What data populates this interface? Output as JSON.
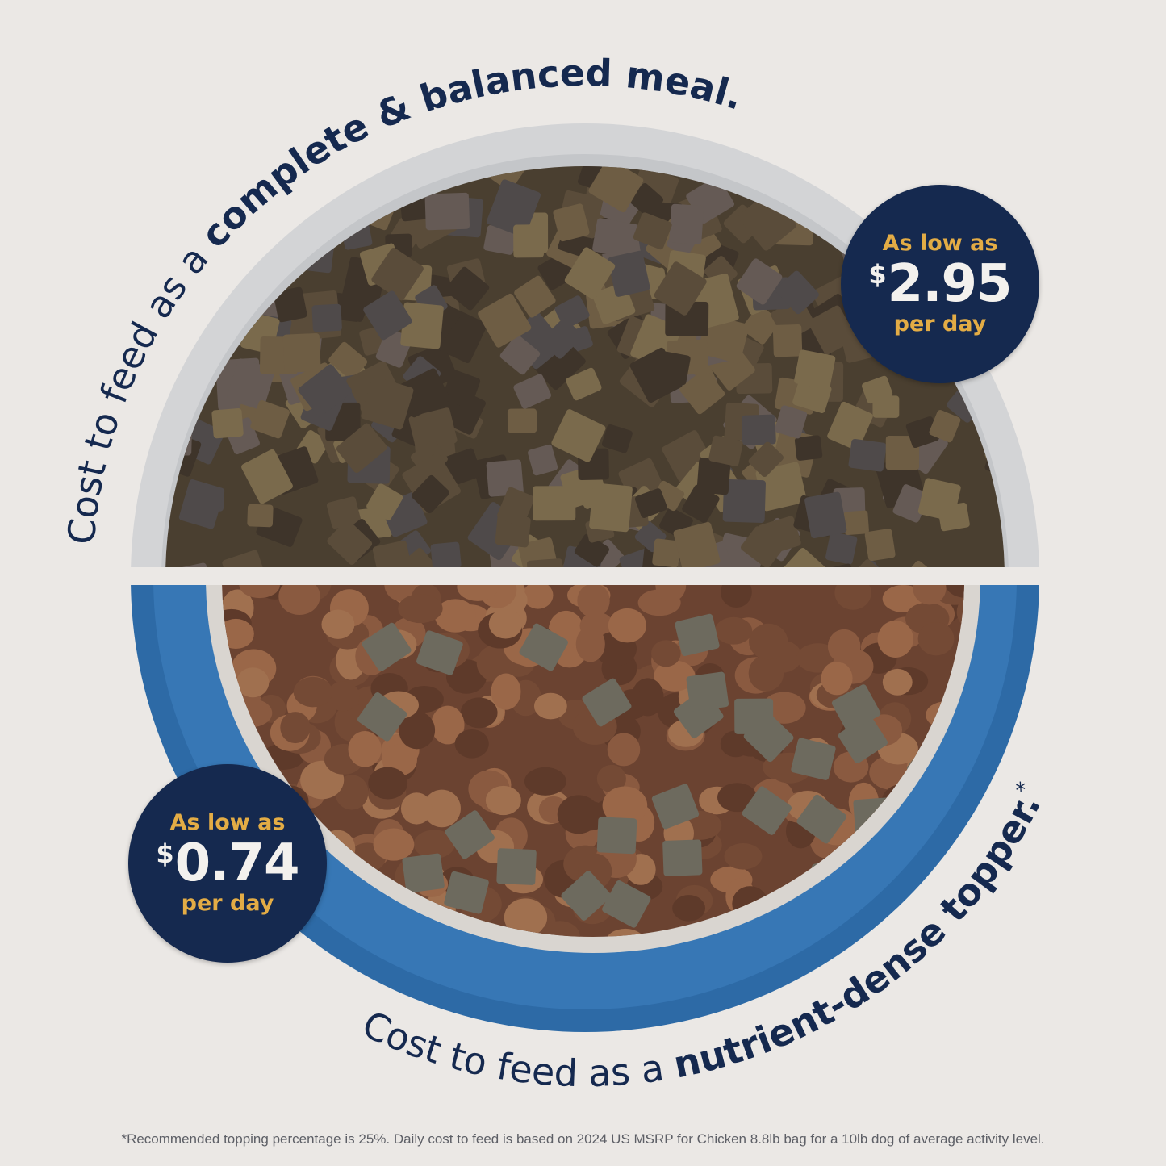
{
  "headline_top": {
    "regular": "Cost to feed as a ",
    "bold": "complete & balanced meal."
  },
  "headline_bottom": {
    "regular": "Cost to feed as a ",
    "bold": "nutrient-dense topper.",
    "mark": "*"
  },
  "badge_meal": {
    "lead": "As low as",
    "currency": "$",
    "amount": "2.95",
    "tail": "per day"
  },
  "badge_topper": {
    "lead": "As low as",
    "currency": "$",
    "amount": "0.74",
    "tail": "per day"
  },
  "footnote": "*Recommended topping percentage is 25%. Daily cost to feed is based on 2024 US MSRP for Chicken 8.8lb bag for a 10lb dog of average activity level.",
  "colors": {
    "background": "#ebe8e5",
    "navy": "#15294f",
    "gold": "#e3ac45",
    "bowl_blue": "#2d6aa6",
    "bowl_grey": "#d3d4d6"
  }
}
